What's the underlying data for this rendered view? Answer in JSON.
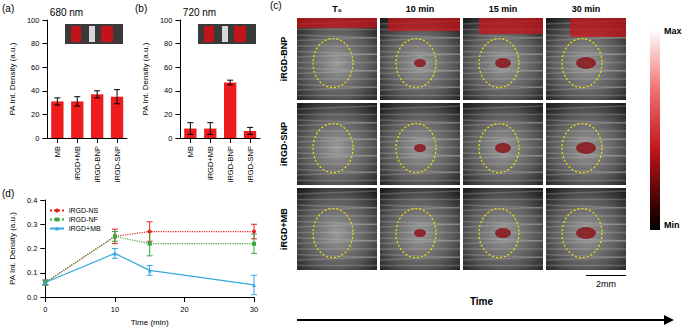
{
  "chart_data": [
    {
      "type": "bar",
      "title": "680 nm",
      "annotations": [
        "(a)"
      ],
      "categories": [
        "MB",
        "iRGD+MB",
        "iRGD-BNP",
        "iRGD-SNP"
      ],
      "values": [
        31,
        31,
        37,
        35
      ],
      "errors": [
        3,
        4,
        3,
        6
      ],
      "color": "#ee1c1c",
      "ylabel": "PA Int. Density (a.u.)",
      "ylim": [
        0,
        100
      ],
      "yticks": [
        0,
        20,
        40,
        60,
        80,
        100
      ],
      "grid": false
    },
    {
      "type": "bar",
      "title": "720 nm",
      "annotations": [
        "(b)"
      ],
      "categories": [
        "MB",
        "iRGD+MB",
        "iRGD-BNP",
        "iRGD-SNP"
      ],
      "values": [
        8,
        8,
        47,
        6
      ],
      "errors": [
        5,
        5,
        2,
        3
      ],
      "color": "#ee1c1c",
      "ylabel": "PA Int. Density (a.u.)",
      "ylim": [
        0,
        100
      ],
      "yticks": [
        0,
        20,
        40,
        60,
        80,
        100
      ],
      "grid": false
    },
    {
      "type": "line",
      "annotations": [
        "(d)"
      ],
      "xlabel": "Time (min)",
      "ylabel": "PA Int. Density (a.u.)",
      "x": [
        0,
        10,
        15,
        30
      ],
      "xlim": [
        0,
        30
      ],
      "xticks": [
        0,
        10,
        20,
        30
      ],
      "ylim": [
        0,
        0.4
      ],
      "yticks": [
        {
          "value": 0,
          "label": "0.0"
        },
        0.1,
        0.2,
        0.3,
        0.4
      ],
      "legend": "upper left",
      "grid": false,
      "series": [
        {
          "name": "iRGD-NS",
          "color": "#e8201f",
          "values": [
            0.06,
            0.25,
            0.27,
            0.27
          ],
          "errors": [
            0.01,
            0.03,
            0.04,
            0.03
          ],
          "marker": "circle",
          "line_style": "dotted"
        },
        {
          "name": "iRGD-NF",
          "color": "#3aa63a",
          "values": [
            0.06,
            0.25,
            0.22,
            0.22
          ],
          "errors": [
            0.01,
            0.02,
            0.05,
            0.04
          ],
          "marker": "square",
          "line_style": "dotted"
        },
        {
          "name": "iRGD+MB",
          "color": "#35a8e0",
          "values": [
            0.06,
            0.18,
            0.11,
            0.05
          ],
          "errors": [
            0.01,
            0.02,
            0.02,
            0.04
          ],
          "marker": "triangle",
          "line_style": "solid"
        }
      ]
    }
  ],
  "image_panel": {
    "label": "(c)",
    "columns": [
      "T₀",
      "10 min",
      "15 min",
      "30 min"
    ],
    "rows": [
      "iRGD-BNP",
      "iRGD-SNP",
      "iRGD+MB"
    ],
    "colorbar": [
      "Max",
      "Min"
    ],
    "scale_bar": "2mm",
    "arrow": "Time"
  }
}
